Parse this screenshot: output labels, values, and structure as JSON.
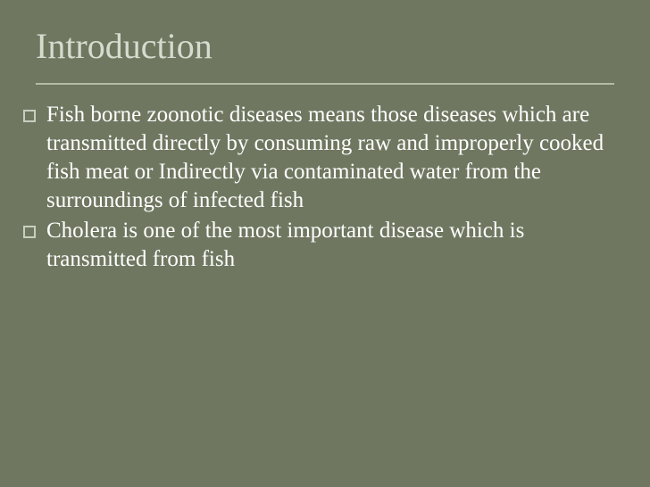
{
  "slide": {
    "title": "Introduction",
    "bullets": [
      "Fish borne zoonotic diseases means those diseases which are transmitted directly by consuming raw and improperly cooked fish meat or Indirectly via contaminated water from the surroundings of infected fish",
      "Cholera is one of the most important disease which is transmitted from fish"
    ]
  },
  "style": {
    "background_color": "#6f7760",
    "title_color": "#d7dbcf",
    "title_fontsize": 40,
    "divider_color": "#b4bba6",
    "bullet_border_color": "#c9cebf",
    "body_text_color": "#ffffff",
    "body_fontsize": 25,
    "font_family": "Georgia, serif"
  }
}
